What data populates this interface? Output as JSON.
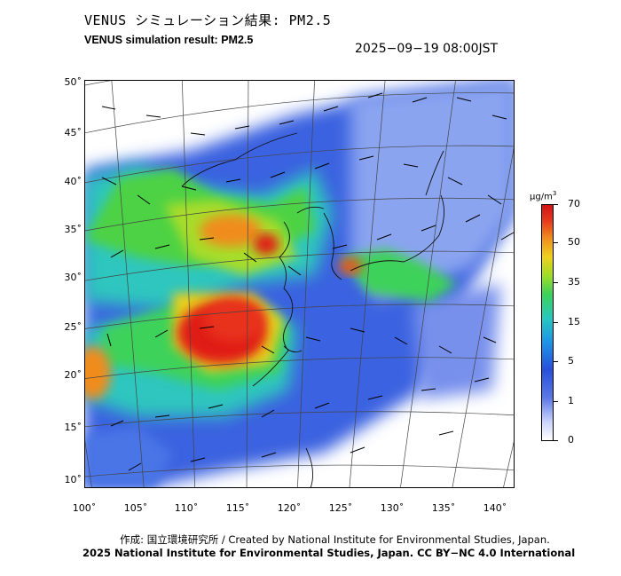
{
  "header": {
    "title_jp": "VENUS シミュレーション結果: PM2.5",
    "title_en": "VENUS simulation result: PM2.5",
    "timestamp": "2025−09−19 08:00JST"
  },
  "map": {
    "lat_labels": [
      "50˚",
      "45˚",
      "40˚",
      "35˚",
      "30˚",
      "25˚",
      "20˚",
      "15˚",
      "10˚"
    ],
    "lon_labels": [
      "100˚",
      "105˚",
      "110˚",
      "115˚",
      "120˚",
      "125˚",
      "130˚",
      "135˚",
      "140˚"
    ],
    "colors": {
      "ocean": "#ffffff",
      "low": "#2a56dc",
      "mid": "#3ccf5a",
      "high": "#e8d01e",
      "very_high": "#e01a14",
      "arrow": "#000000"
    }
  },
  "colorbar": {
    "unit": "µg/m",
    "unit_sup": "3",
    "ticks": [
      "70",
      "50",
      "35",
      "15",
      "5",
      "1",
      "0"
    ]
  },
  "footer": {
    "credit_line1": "作成: 国立環境研究所 / Created by National Institute for Environmental Studies, Japan.",
    "credit_line2": "2025 National Institute for Environmental Studies, Japan. CC BY−NC 4.0 International"
  }
}
